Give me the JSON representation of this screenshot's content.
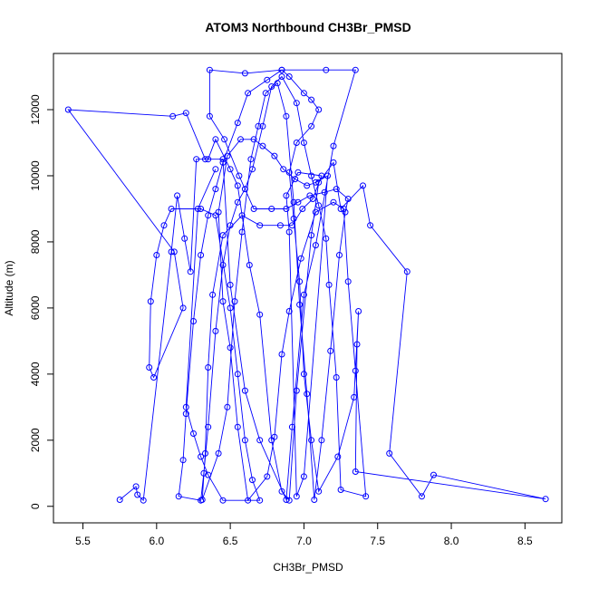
{
  "chart_data": {
    "type": "line",
    "title": "ATOM3 Northbound CH3Br_PMSD",
    "xlabel": "CH3Br_PMSD",
    "ylabel": "Altitude (m)",
    "xlim": [
      5.3,
      8.75
    ],
    "ylim": [
      -500,
      13700
    ],
    "x_ticks": [
      5.5,
      6.0,
      6.5,
      7.0,
      7.5,
      8.0,
      8.5
    ],
    "x_tick_labels": [
      "5.5",
      "6.0",
      "6.5",
      "7.0",
      "7.5",
      "8.0",
      "8.5"
    ],
    "y_ticks": [
      0,
      2000,
      4000,
      6000,
      8000,
      10000,
      12000
    ],
    "y_tick_labels": [
      "0",
      "2000",
      "4000",
      "6000",
      "8000",
      "10000",
      "12000"
    ],
    "marker": "open-circle",
    "colors": {
      "series": "#0000ff",
      "axes": "#000000",
      "background": "#ffffff"
    },
    "series": [
      {
        "points": [
          [
            5.75,
            200
          ],
          [
            5.86,
            600
          ],
          [
            5.87,
            350
          ],
          [
            5.91,
            180
          ],
          [
            6.1,
            7700
          ],
          [
            6.14,
            9400
          ],
          [
            6.19,
            8100
          ],
          [
            6.23,
            7100
          ],
          [
            6.27,
            10500
          ],
          [
            6.35,
            10500
          ],
          [
            6.4,
            11100
          ],
          [
            6.5,
            10200
          ],
          [
            6.55,
            9700
          ],
          [
            6.63,
            7300
          ],
          [
            6.7,
            5800
          ],
          [
            6.78,
            2000
          ],
          [
            6.85,
            450
          ],
          [
            6.9,
            180
          ],
          [
            6.95,
            3500
          ],
          [
            7.05,
            8200
          ],
          [
            7.1,
            9800
          ],
          [
            7.2,
            10400
          ],
          [
            7.25,
            9000
          ],
          [
            7.4,
            9700
          ],
          [
            7.45,
            8500
          ],
          [
            7.7,
            7100
          ],
          [
            7.58,
            1600
          ],
          [
            7.8,
            300
          ],
          [
            7.88,
            950
          ],
          [
            8.64,
            220
          ],
          [
            7.35,
            1050
          ],
          [
            7.36,
            4900
          ],
          [
            7.37,
            5900
          ],
          [
            7.34,
            3300
          ],
          [
            7.23,
            1500
          ],
          [
            7.1,
            450
          ],
          [
            7.05,
            2000
          ],
          [
            7.0,
            4000
          ],
          [
            6.97,
            6800
          ],
          [
            6.93,
            8700
          ],
          [
            6.9,
            10100
          ],
          [
            6.95,
            11000
          ],
          [
            7.05,
            11500
          ],
          [
            7.1,
            12000
          ],
          [
            7.05,
            12300
          ],
          [
            7.0,
            12500
          ],
          [
            6.9,
            13000
          ],
          [
            6.85,
            13200
          ],
          [
            6.75,
            12900
          ],
          [
            6.62,
            12500
          ],
          [
            6.55,
            11600
          ],
          [
            6.45,
            10400
          ],
          [
            6.4,
            9600
          ],
          [
            6.35,
            8800
          ],
          [
            6.3,
            7600
          ],
          [
            6.25,
            5600
          ],
          [
            6.2,
            2800
          ],
          [
            6.18,
            1400
          ],
          [
            6.15,
            300
          ],
          [
            6.3,
            180
          ],
          [
            6.32,
            1000
          ],
          [
            6.35,
            2400
          ],
          [
            6.4,
            5300
          ],
          [
            6.45,
            7300
          ],
          [
            6.5,
            8500
          ],
          [
            6.55,
            9200
          ],
          [
            6.6,
            9600
          ],
          [
            6.65,
            10200
          ],
          [
            6.72,
            11500
          ],
          [
            6.78,
            12700
          ],
          [
            6.85,
            13000
          ],
          [
            6.95,
            12200
          ],
          [
            7.0,
            11000
          ],
          [
            7.05,
            10000
          ],
          [
            7.1,
            9100
          ],
          [
            7.15,
            8100
          ],
          [
            7.17,
            6700
          ],
          [
            7.22,
            3900
          ],
          [
            7.25,
            500
          ],
          [
            7.42,
            300
          ],
          [
            7.35,
            4100
          ],
          [
            7.3,
            6800
          ],
          [
            7.27,
            9000
          ],
          [
            7.2,
            9200
          ],
          [
            7.08,
            8900
          ],
          [
            6.98,
            7500
          ],
          [
            6.9,
            5900
          ],
          [
            6.85,
            4600
          ],
          [
            6.8,
            2100
          ],
          [
            6.75,
            900
          ],
          [
            6.62,
            180
          ],
          [
            6.55,
            2400
          ],
          [
            6.5,
            4800
          ],
          [
            6.45,
            6200
          ],
          [
            6.42,
            8900
          ],
          [
            6.48,
            10600
          ],
          [
            6.57,
            11100
          ],
          [
            6.66,
            11100
          ],
          [
            6.72,
            10900
          ],
          [
            6.8,
            10600
          ],
          [
            6.86,
            10200
          ],
          [
            6.94,
            9900
          ],
          [
            7.02,
            9700
          ],
          [
            7.08,
            9800
          ],
          [
            7.16,
            10000
          ],
          [
            7.0,
            900
          ],
          [
            6.95,
            300
          ],
          [
            6.9,
            8300
          ],
          [
            6.88,
            9400
          ],
          [
            6.96,
            10100
          ],
          [
            7.12,
            10000
          ],
          [
            7.06,
            9300
          ],
          [
            6.99,
            9000
          ],
          [
            6.92,
            8500
          ],
          [
            6.84,
            8500
          ],
          [
            6.7,
            8500
          ],
          [
            6.58,
            8800
          ],
          [
            6.45,
            8200
          ],
          [
            6.38,
            6400
          ],
          [
            6.35,
            4200
          ],
          [
            6.33,
            1600
          ],
          [
            6.31,
            200
          ],
          [
            6.42,
            1600
          ],
          [
            6.48,
            3000
          ],
          [
            6.53,
            6200
          ],
          [
            6.58,
            8300
          ],
          [
            6.64,
            10500
          ],
          [
            6.69,
            11500
          ],
          [
            6.74,
            12500
          ],
          [
            6.82,
            12800
          ],
          [
            6.88,
            11800
          ],
          [
            6.93,
            9200
          ],
          [
            6.97,
            6100
          ],
          [
            7.02,
            3400
          ],
          [
            7.07,
            200
          ],
          [
            7.12,
            2000
          ],
          [
            7.18,
            4700
          ],
          [
            7.24,
            7600
          ],
          [
            7.28,
            8900
          ],
          [
            7.3,
            9300
          ],
          [
            7.22,
            9600
          ],
          [
            7.14,
            9500
          ],
          [
            7.04,
            9400
          ],
          [
            6.96,
            9200
          ],
          [
            6.88,
            9000
          ],
          [
            6.78,
            9000
          ],
          [
            6.66,
            9000
          ],
          [
            6.56,
            10000
          ],
          [
            6.46,
            11100
          ],
          [
            6.36,
            11800
          ],
          [
            6.36,
            13200
          ],
          [
            6.6,
            13100
          ],
          [
            6.85,
            13200
          ],
          [
            7.15,
            13200
          ],
          [
            7.35,
            13200
          ],
          [
            7.2,
            10900
          ],
          [
            7.08,
            7900
          ],
          [
            7.0,
            6400
          ],
          [
            6.92,
            2400
          ],
          [
            6.88,
            200
          ],
          [
            6.7,
            2000
          ],
          [
            6.6,
            3500
          ],
          [
            6.5,
            6700
          ],
          [
            6.45,
            10500
          ],
          [
            6.33,
            10500
          ],
          [
            6.2,
            11900
          ],
          [
            6.11,
            11800
          ],
          [
            5.4,
            12000
          ],
          [
            6.12,
            7700
          ],
          [
            6.18,
            6000
          ],
          [
            5.98,
            3900
          ],
          [
            5.95,
            4200
          ],
          [
            5.96,
            6200
          ],
          [
            6.0,
            7600
          ],
          [
            6.05,
            8500
          ],
          [
            6.1,
            9000
          ],
          [
            6.3,
            9000
          ],
          [
            6.4,
            8800
          ],
          [
            6.5,
            6000
          ],
          [
            6.55,
            4000
          ],
          [
            6.6,
            2000
          ],
          [
            6.65,
            800
          ],
          [
            6.7,
            180
          ],
          [
            6.45,
            180
          ],
          [
            6.35,
            950
          ],
          [
            6.3,
            1500
          ],
          [
            6.25,
            2200
          ],
          [
            6.2,
            3000
          ],
          [
            6.28,
            9000
          ],
          [
            6.4,
            10200
          ]
        ]
      }
    ]
  }
}
